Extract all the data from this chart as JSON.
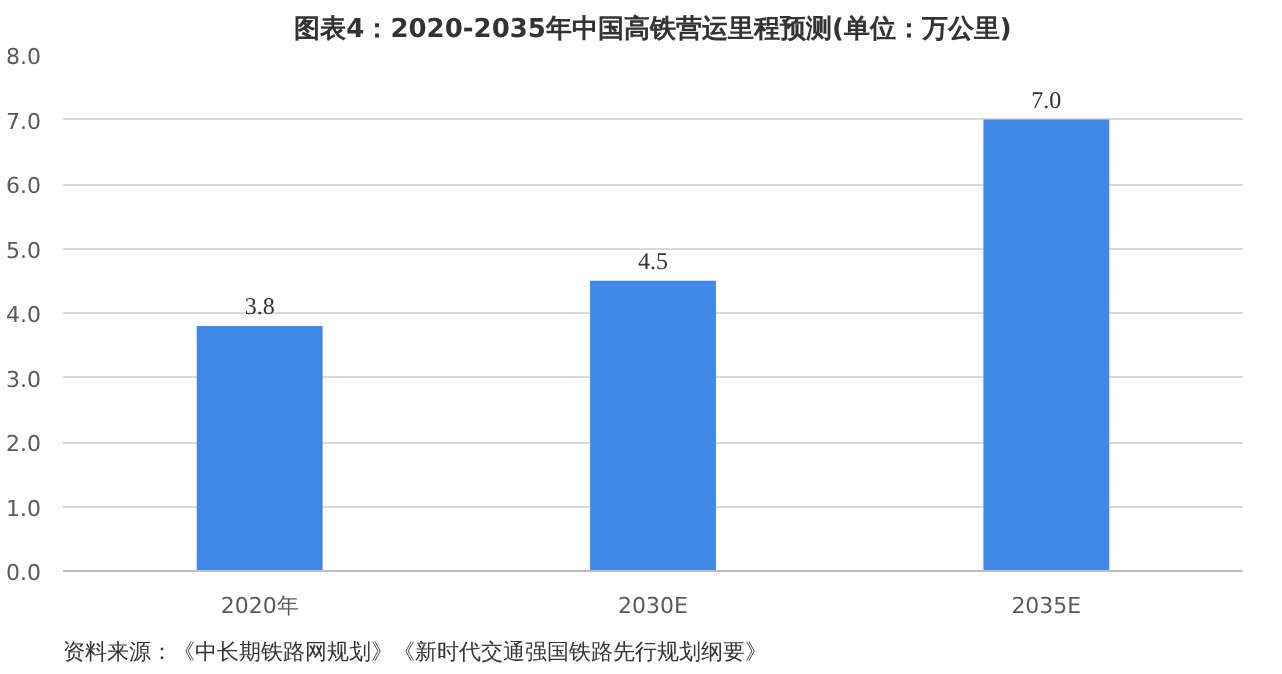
{
  "chart_data": {
    "type": "bar",
    "title": "图表4：2020-2035年中国高铁营运里程预测(单位：万公里)",
    "categories": [
      "2020年",
      "2030E",
      "2035E"
    ],
    "values": [
      3.8,
      4.5,
      7.0
    ],
    "value_labels": [
      "3.8",
      "4.5",
      "7.0"
    ],
    "color": "#4088e8",
    "ylim": [
      0,
      8
    ],
    "yticks": [
      {
        "value": 0,
        "label": "0.0"
      },
      {
        "value": 1,
        "label": "1.0"
      },
      {
        "value": 2,
        "label": "2.0"
      },
      {
        "value": 3,
        "label": "3.0"
      },
      {
        "value": 4,
        "label": "4.0"
      },
      {
        "value": 5,
        "label": "5.0"
      },
      {
        "value": 6,
        "label": "6.0"
      },
      {
        "value": 7,
        "label": "7.0"
      },
      {
        "value": 8,
        "label": "8.0"
      }
    ],
    "grid": "y",
    "annotations": [
      "资料来源：《中长期铁路网规划》《新时代交通强国铁路先行规划纲要》"
    ]
  }
}
